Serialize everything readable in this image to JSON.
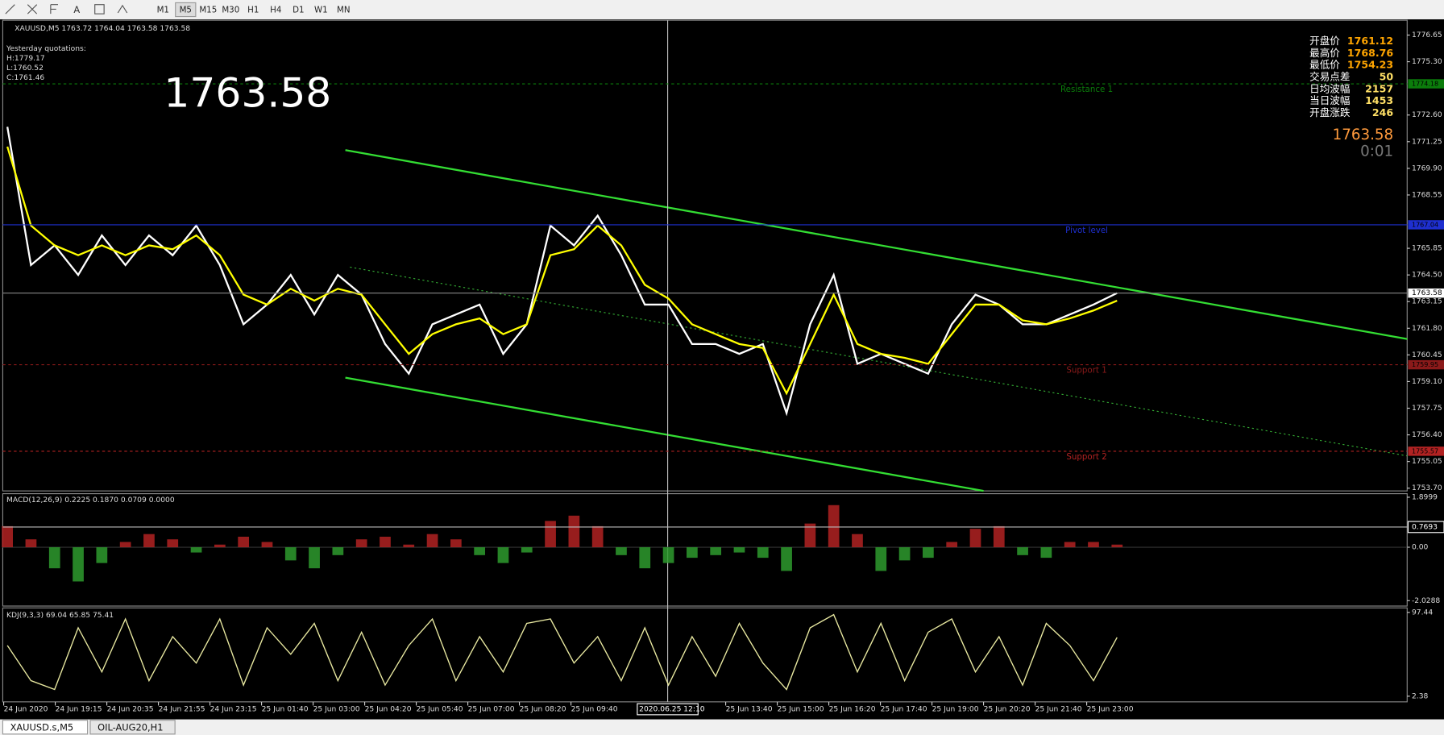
{
  "toolbar": {
    "text_tool": "A",
    "timeframes": [
      "M1",
      "M5",
      "M15",
      "M30",
      "H1",
      "H4",
      "D1",
      "W1",
      "MN"
    ]
  },
  "tabs": [
    "XAUUSD.s,M5",
    "OIL-AUG20,H1"
  ],
  "x_labels": [
    "24 Jun 2020",
    "24 Jun 19:15",
    "24 Jun 20:35",
    "24 Jun 21:55",
    "24 Jun 23:15",
    "25 Jun 01:40",
    "25 Jun 03:00",
    "25 Jun 04:20",
    "25 Jun 05:40",
    "25 Jun 07:00",
    "25 Jun 08:20",
    "25 Jun 09:40",
    null,
    null,
    "25 Jun 13:40",
    "25 Jun 15:00",
    "25 Jun 16:20",
    "25 Jun 17:40",
    "25 Jun 19:00",
    "25 Jun 20:20",
    "25 Jun 21:40",
    "25 Jun 23:00"
  ],
  "crosshair_time": "2020.06.25 12:10",
  "chart_data": [
    {
      "type": "line",
      "header": "XAUUSD,M5  1763.72 1764.04 1763.58 1763.58",
      "yesterday": [
        "Yesterday quotations:",
        "H:1779.17",
        "L:1760.52",
        "C:1761.46"
      ],
      "big_price": "1763.58",
      "info_panel": [
        [
          "开盘价",
          "1761.12"
        ],
        [
          "最高价",
          "1768.76"
        ],
        [
          "最低价",
          "1754.23"
        ],
        [
          "交易点差",
          "50"
        ],
        [
          "日均波幅",
          "2157"
        ],
        [
          "当日波幅",
          "1453"
        ],
        [
          "开盘涨跌",
          "246"
        ]
      ],
      "current_price": "1763.58",
      "timer": "0:01",
      "levels": [
        {
          "name": "Resistance 1",
          "value": 1774.18,
          "label": "1774.18",
          "color": "#0b7d0b"
        },
        {
          "name": "Pivot level",
          "value": 1767.04,
          "label": "1767.04",
          "color": "#1e2fd0"
        },
        {
          "name": "Support 1",
          "value": 1759.95,
          "label": "1759.95",
          "color": "#8b1a1a"
        },
        {
          "name": "Support 2",
          "value": 1755.57,
          "label": "1755.57",
          "color": "#b22222"
        }
      ],
      "price_tick": {
        "value": 1763.58,
        "label": "1763.58"
      },
      "ylim": [
        1753.56,
        1777.4
      ],
      "yticks": [
        {
          "value": 1776.65,
          "label": "1776.65"
        },
        {
          "value": 1775.3,
          "label": "1775.30"
        },
        {
          "value": 1772.6,
          "label": "1772.60"
        },
        {
          "value": 1771.25,
          "label": "1771.25"
        },
        {
          "value": 1769.9,
          "label": "1769.90"
        },
        {
          "value": 1768.55,
          "label": "1768.55"
        },
        {
          "value": 1765.85,
          "label": "1765.85"
        },
        {
          "value": 1764.5,
          "label": "1764.50"
        },
        {
          "value": 1763.15,
          "label": "1763.15"
        },
        {
          "value": 1761.8,
          "label": "1761.80"
        },
        {
          "value": 1760.45,
          "label": "1760.45"
        },
        {
          "value": 1759.1,
          "label": "1759.10"
        },
        {
          "value": 1757.75,
          "label": "1757.75"
        },
        {
          "value": 1756.4,
          "label": "1756.40"
        },
        {
          "value": 1755.05,
          "label": "1755.05"
        },
        {
          "value": 1753.7,
          "label": "1753.70"
        }
      ],
      "series": [
        {
          "color": "#ffffff",
          "values": [
            1772,
            1765,
            1766,
            1764.5,
            1766.5,
            1765,
            1766.5,
            1765.5,
            1767,
            1765,
            1762,
            1763,
            1764.5,
            1762.5,
            1764.5,
            1763.5,
            1761,
            1759.5,
            1762,
            1762.5,
            1763,
            1760.5,
            1762,
            1767,
            1766,
            1767.5,
            1765.5,
            1763,
            1763,
            1761,
            1761,
            1760.5,
            1761,
            1757.5,
            1762,
            1764.5,
            1760,
            1760.5,
            1760,
            1759.5,
            1762,
            1763.5,
            1763,
            1762,
            1762,
            1762.5,
            1763,
            1763.58
          ]
        },
        {
          "color": "#ffff00",
          "values": [
            1771,
            1767,
            1766,
            1765.5,
            1766,
            1765.5,
            1766,
            1765.8,
            1766.5,
            1765.5,
            1763.5,
            1763,
            1763.8,
            1763.2,
            1763.8,
            1763.5,
            1762,
            1760.5,
            1761.5,
            1762,
            1762.3,
            1761.5,
            1762,
            1765.5,
            1765.8,
            1767,
            1766,
            1764,
            1763.3,
            1762,
            1761.5,
            1761,
            1760.8,
            1758.5,
            1761,
            1763.5,
            1761,
            1760.5,
            1760.3,
            1760,
            1761.5,
            1763,
            1763,
            1762.2,
            1762,
            1762.3,
            1762.7,
            1763.2
          ]
        }
      ]
    },
    {
      "type": "bar",
      "header": "MACD(12,26,9) 0.2225 0.1870 0.0709 0.0000",
      "ylim": [
        -2.2,
        2.0
      ],
      "yticks": [
        {
          "value": 1.8999,
          "label": "1.8999"
        },
        {
          "value": 0,
          "label": "0.00"
        },
        {
          "value": -2.0288,
          "label": "-2.0288"
        }
      ],
      "crosshair": 0.7693,
      "colors": {
        "up": "#b22222",
        "down": "#2e9b2e"
      },
      "values": [
        0.8,
        0.3,
        -0.8,
        -1.3,
        -0.6,
        0.2,
        0.5,
        0.3,
        -0.2,
        0.1,
        0.4,
        0.2,
        -0.5,
        -0.8,
        -0.3,
        0.3,
        0.4,
        0.1,
        0.5,
        0.3,
        -0.3,
        -0.6,
        -0.2,
        1.0,
        1.2,
        0.8,
        -0.3,
        -0.8,
        -0.6,
        -0.4,
        -0.3,
        -0.2,
        -0.4,
        -0.9,
        0.9,
        1.6,
        0.5,
        -0.9,
        -0.5,
        -0.4,
        0.2,
        0.7,
        0.8,
        -0.3,
        -0.4,
        0.2,
        0.2,
        0.1
      ]
    },
    {
      "type": "line",
      "header": "KDJ(9,3,3) 69.04 65.85 75.41",
      "ylim": [
        -4,
        100.5
      ],
      "yticks": [
        97.44,
        2.38
      ],
      "series": [
        {
          "color": "#e8e8a0",
          "values": [
            60,
            20,
            10,
            80,
            30,
            90,
            20,
            70,
            40,
            90,
            15,
            80,
            50,
            85,
            20,
            75,
            15,
            60,
            90,
            20,
            70,
            30,
            85,
            90,
            40,
            70,
            20,
            80,
            15,
            70,
            25,
            85,
            40,
            10,
            80,
            95,
            30,
            85,
            20,
            75,
            90,
            30,
            70,
            15,
            85,
            60,
            20,
            69.04
          ]
        }
      ]
    }
  ]
}
